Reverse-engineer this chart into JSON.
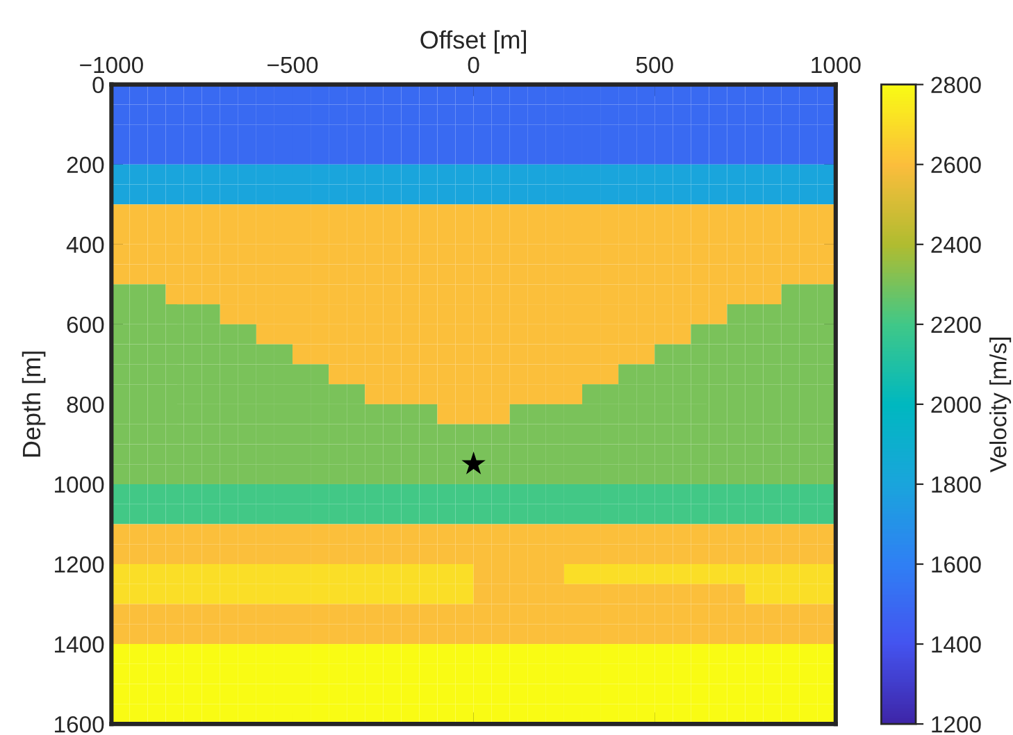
{
  "chart_data": {
    "type": "heatmap",
    "xlabel": "Offset [m]",
    "ylabel": "Depth [m]",
    "clabel": "Velocity [m/s]",
    "xlim": [
      -1000,
      1000
    ],
    "xticks": [
      {
        "value": -1000,
        "label": "−1000"
      },
      {
        "value": -500,
        "label": "−500"
      },
      0,
      500,
      1000
    ],
    "ylim": [
      1600,
      0
    ],
    "yticks": [
      0,
      200,
      400,
      600,
      800,
      1000,
      1200,
      1400,
      1600
    ],
    "clim": [
      1200,
      2800
    ],
    "cticks": [
      1200,
      1400,
      1600,
      1800,
      2000,
      2200,
      2400,
      2600,
      2800
    ],
    "grid": false,
    "marker": "star",
    "cells": [
      [
        1500,
        1500,
        1500,
        1500,
        1500,
        1500,
        1500,
        1500,
        1500,
        1500,
        1500,
        1500,
        1500,
        1500,
        1500,
        1500,
        1500,
        1500,
        1500,
        1500,
        1500,
        1500,
        1500,
        1500,
        1500,
        1500,
        1500,
        1500,
        1500,
        1500,
        1500,
        1500,
        1500,
        1500,
        1500,
        1500,
        1500,
        1500,
        1500,
        1500
      ],
      [
        1500,
        1500,
        1500,
        1500,
        1500,
        1500,
        1500,
        1500,
        1500,
        1500,
        1500,
        1500,
        1500,
        1500,
        1500,
        1500,
        1500,
        1500,
        1500,
        1500,
        1500,
        1500,
        1500,
        1500,
        1500,
        1500,
        1500,
        1500,
        1500,
        1500,
        1500,
        1500,
        1500,
        1500,
        1500,
        1500,
        1500,
        1500,
        1500,
        1500
      ],
      [
        1500,
        1500,
        1500,
        1500,
        1500,
        1500,
        1500,
        1500,
        1500,
        1500,
        1500,
        1500,
        1500,
        1500,
        1500,
        1500,
        1500,
        1500,
        1500,
        1500,
        1500,
        1500,
        1500,
        1500,
        1500,
        1500,
        1500,
        1500,
        1500,
        1500,
        1500,
        1500,
        1500,
        1500,
        1500,
        1500,
        1500,
        1500,
        1500,
        1500
      ],
      [
        1500,
        1500,
        1500,
        1500,
        1500,
        1500,
        1500,
        1500,
        1500,
        1500,
        1500,
        1500,
        1500,
        1500,
        1500,
        1500,
        1500,
        1500,
        1500,
        1500,
        1500,
        1500,
        1500,
        1500,
        1500,
        1500,
        1500,
        1500,
        1500,
        1500,
        1500,
        1500,
        1500,
        1500,
        1500,
        1500,
        1500,
        1500,
        1500,
        1500
      ],
      [
        1800,
        1800,
        1800,
        1800,
        1800,
        1800,
        1800,
        1800,
        1800,
        1800,
        1800,
        1800,
        1800,
        1800,
        1800,
        1800,
        1800,
        1800,
        1800,
        1800,
        1800,
        1800,
        1800,
        1800,
        1800,
        1800,
        1800,
        1800,
        1800,
        1800,
        1800,
        1800,
        1800,
        1800,
        1800,
        1800,
        1800,
        1800,
        1800,
        1800
      ],
      [
        1800,
        1800,
        1800,
        1800,
        1800,
        1800,
        1800,
        1800,
        1800,
        1800,
        1800,
        1800,
        1800,
        1800,
        1800,
        1800,
        1800,
        1800,
        1800,
        1800,
        1800,
        1800,
        1800,
        1800,
        1800,
        1800,
        1800,
        1800,
        1800,
        1800,
        1800,
        1800,
        1800,
        1800,
        1800,
        1800,
        1800,
        1800,
        1800,
        1800
      ],
      [
        2600,
        2600,
        2600,
        2600,
        2600,
        2600,
        2600,
        2600,
        2600,
        2600,
        2600,
        2600,
        2600,
        2600,
        2600,
        2600,
        2600,
        2600,
        2600,
        2600,
        2600,
        2600,
        2600,
        2600,
        2600,
        2600,
        2600,
        2600,
        2600,
        2600,
        2600,
        2600,
        2600,
        2600,
        2600,
        2600,
        2600,
        2600,
        2600,
        2600
      ],
      [
        2600,
        2600,
        2600,
        2600,
        2600,
        2600,
        2600,
        2600,
        2600,
        2600,
        2600,
        2600,
        2600,
        2600,
        2600,
        2600,
        2600,
        2600,
        2600,
        2600,
        2600,
        2600,
        2600,
        2600,
        2600,
        2600,
        2600,
        2600,
        2600,
        2600,
        2600,
        2600,
        2600,
        2600,
        2600,
        2600,
        2600,
        2600,
        2600,
        2600
      ],
      [
        2600,
        2600,
        2600,
        2600,
        2600,
        2600,
        2600,
        2600,
        2600,
        2600,
        2600,
        2600,
        2600,
        2600,
        2600,
        2600,
        2600,
        2600,
        2600,
        2600,
        2600,
        2600,
        2600,
        2600,
        2600,
        2600,
        2600,
        2600,
        2600,
        2600,
        2600,
        2600,
        2600,
        2600,
        2600,
        2600,
        2600,
        2600,
        2600,
        2600
      ],
      [
        2600,
        2600,
        2600,
        2600,
        2600,
        2600,
        2600,
        2600,
        2600,
        2600,
        2600,
        2600,
        2600,
        2600,
        2600,
        2600,
        2600,
        2600,
        2600,
        2600,
        2600,
        2600,
        2600,
        2600,
        2600,
        2600,
        2600,
        2600,
        2600,
        2600,
        2600,
        2600,
        2600,
        2600,
        2600,
        2600,
        2600,
        2600,
        2600,
        2600
      ],
      [
        2300,
        2300,
        2300,
        2600,
        2600,
        2600,
        2600,
        2600,
        2600,
        2600,
        2600,
        2600,
        2600,
        2600,
        2600,
        2600,
        2600,
        2600,
        2600,
        2600,
        2600,
        2600,
        2600,
        2600,
        2600,
        2600,
        2600,
        2600,
        2600,
        2600,
        2600,
        2600,
        2600,
        2600,
        2600,
        2600,
        2600,
        2300,
        2300,
        2300
      ],
      [
        2300,
        2300,
        2300,
        2300,
        2300,
        2300,
        2600,
        2600,
        2600,
        2600,
        2600,
        2600,
        2600,
        2600,
        2600,
        2600,
        2600,
        2600,
        2600,
        2600,
        2600,
        2600,
        2600,
        2600,
        2600,
        2600,
        2600,
        2600,
        2600,
        2600,
        2600,
        2600,
        2600,
        2600,
        2300,
        2300,
        2300,
        2300,
        2300,
        2300
      ],
      [
        2300,
        2300,
        2300,
        2300,
        2300,
        2300,
        2300,
        2300,
        2600,
        2600,
        2600,
        2600,
        2600,
        2600,
        2600,
        2600,
        2600,
        2600,
        2600,
        2600,
        2600,
        2600,
        2600,
        2600,
        2600,
        2600,
        2600,
        2600,
        2600,
        2600,
        2600,
        2600,
        2300,
        2300,
        2300,
        2300,
        2300,
        2300,
        2300,
        2300
      ],
      [
        2300,
        2300,
        2300,
        2300,
        2300,
        2300,
        2300,
        2300,
        2300,
        2300,
        2600,
        2600,
        2600,
        2600,
        2600,
        2600,
        2600,
        2600,
        2600,
        2600,
        2600,
        2600,
        2600,
        2600,
        2600,
        2600,
        2600,
        2600,
        2600,
        2600,
        2300,
        2300,
        2300,
        2300,
        2300,
        2300,
        2300,
        2300,
        2300,
        2300
      ],
      [
        2300,
        2300,
        2300,
        2300,
        2300,
        2300,
        2300,
        2300,
        2300,
        2300,
        2300,
        2300,
        2600,
        2600,
        2600,
        2600,
        2600,
        2600,
        2600,
        2600,
        2600,
        2600,
        2600,
        2600,
        2600,
        2600,
        2600,
        2600,
        2300,
        2300,
        2300,
        2300,
        2300,
        2300,
        2300,
        2300,
        2300,
        2300,
        2300,
        2300
      ],
      [
        2300,
        2300,
        2300,
        2300,
        2300,
        2300,
        2300,
        2300,
        2300,
        2300,
        2300,
        2300,
        2300,
        2300,
        2600,
        2600,
        2600,
        2600,
        2600,
        2600,
        2600,
        2600,
        2600,
        2600,
        2600,
        2600,
        2300,
        2300,
        2300,
        2300,
        2300,
        2300,
        2300,
        2300,
        2300,
        2300,
        2300,
        2300,
        2300,
        2300
      ],
      [
        2300,
        2300,
        2300,
        2300,
        2300,
        2300,
        2300,
        2300,
        2300,
        2300,
        2300,
        2300,
        2300,
        2300,
        2300,
        2300,
        2300,
        2300,
        2600,
        2600,
        2600,
        2600,
        2300,
        2300,
        2300,
        2300,
        2300,
        2300,
        2300,
        2300,
        2300,
        2300,
        2300,
        2300,
        2300,
        2300,
        2300,
        2300,
        2300,
        2300
      ],
      [
        2300,
        2300,
        2300,
        2300,
        2300,
        2300,
        2300,
        2300,
        2300,
        2300,
        2300,
        2300,
        2300,
        2300,
        2300,
        2300,
        2300,
        2300,
        2300,
        2300,
        2300,
        2300,
        2300,
        2300,
        2300,
        2300,
        2300,
        2300,
        2300,
        2300,
        2300,
        2300,
        2300,
        2300,
        2300,
        2300,
        2300,
        2300,
        2300,
        2300
      ],
      [
        2300,
        2300,
        2300,
        2300,
        2300,
        2300,
        2300,
        2300,
        2300,
        2300,
        2300,
        2300,
        2300,
        2300,
        2300,
        2300,
        2300,
        2300,
        2300,
        2300,
        2300,
        2300,
        2300,
        2300,
        2300,
        2300,
        2300,
        2300,
        2300,
        2300,
        2300,
        2300,
        2300,
        2300,
        2300,
        2300,
        2300,
        2300,
        2300,
        2300
      ],
      [
        2300,
        2300,
        2300,
        2300,
        2300,
        2300,
        2300,
        2300,
        2300,
        2300,
        2300,
        2300,
        2300,
        2300,
        2300,
        2300,
        2300,
        2300,
        2300,
        2300,
        2300,
        2300,
        2300,
        2300,
        2300,
        2300,
        2300,
        2300,
        2300,
        2300,
        2300,
        2300,
        2300,
        2300,
        2300,
        2300,
        2300,
        2300,
        2300,
        2300
      ],
      [
        2200,
        2200,
        2200,
        2200,
        2200,
        2200,
        2200,
        2200,
        2200,
        2200,
        2200,
        2200,
        2200,
        2200,
        2200,
        2200,
        2200,
        2200,
        2200,
        2200,
        2200,
        2200,
        2200,
        2200,
        2200,
        2200,
        2200,
        2200,
        2200,
        2200,
        2200,
        2200,
        2200,
        2200,
        2200,
        2200,
        2200,
        2200,
        2200,
        2200
      ],
      [
        2200,
        2200,
        2200,
        2200,
        2200,
        2200,
        2200,
        2200,
        2200,
        2200,
        2200,
        2200,
        2200,
        2200,
        2200,
        2200,
        2200,
        2200,
        2200,
        2200,
        2200,
        2200,
        2200,
        2200,
        2200,
        2200,
        2200,
        2200,
        2200,
        2200,
        2200,
        2200,
        2200,
        2200,
        2200,
        2200,
        2200,
        2200,
        2200,
        2200
      ],
      [
        2600,
        2600,
        2600,
        2600,
        2600,
        2600,
        2600,
        2600,
        2600,
        2600,
        2600,
        2600,
        2600,
        2600,
        2600,
        2600,
        2600,
        2600,
        2600,
        2600,
        2600,
        2600,
        2600,
        2600,
        2600,
        2600,
        2600,
        2600,
        2600,
        2600,
        2600,
        2600,
        2600,
        2600,
        2600,
        2600,
        2600,
        2600,
        2600,
        2600
      ],
      [
        2600,
        2600,
        2600,
        2600,
        2600,
        2600,
        2600,
        2600,
        2600,
        2600,
        2600,
        2600,
        2600,
        2600,
        2600,
        2600,
        2600,
        2600,
        2600,
        2600,
        2600,
        2600,
        2600,
        2600,
        2600,
        2600,
        2600,
        2600,
        2600,
        2600,
        2600,
        2600,
        2600,
        2600,
        2600,
        2600,
        2600,
        2600,
        2600,
        2600
      ],
      [
        2700,
        2700,
        2700,
        2700,
        2700,
        2700,
        2700,
        2700,
        2700,
        2700,
        2700,
        2700,
        2700,
        2700,
        2700,
        2700,
        2700,
        2700,
        2700,
        2700,
        2600,
        2600,
        2600,
        2600,
        2600,
        2700,
        2700,
        2700,
        2700,
        2700,
        2700,
        2700,
        2700,
        2700,
        2700,
        2700,
        2700,
        2700,
        2700,
        2700
      ],
      [
        2700,
        2700,
        2700,
        2700,
        2700,
        2700,
        2700,
        2700,
        2700,
        2700,
        2700,
        2700,
        2700,
        2700,
        2700,
        2700,
        2700,
        2700,
        2700,
        2700,
        2600,
        2600,
        2600,
        2600,
        2600,
        2600,
        2600,
        2600,
        2600,
        2600,
        2600,
        2600,
        2600,
        2600,
        2600,
        2700,
        2700,
        2700,
        2700,
        2700
      ],
      [
        2600,
        2600,
        2600,
        2600,
        2600,
        2600,
        2600,
        2600,
        2600,
        2600,
        2600,
        2600,
        2600,
        2600,
        2600,
        2600,
        2600,
        2600,
        2600,
        2600,
        2600,
        2600,
        2600,
        2600,
        2600,
        2600,
        2600,
        2600,
        2600,
        2600,
        2600,
        2600,
        2600,
        2600,
        2600,
        2600,
        2600,
        2600,
        2600,
        2600
      ],
      [
        2600,
        2600,
        2600,
        2600,
        2600,
        2600,
        2600,
        2600,
        2600,
        2600,
        2600,
        2600,
        2600,
        2600,
        2600,
        2600,
        2600,
        2600,
        2600,
        2600,
        2600,
        2600,
        2600,
        2600,
        2600,
        2600,
        2600,
        2600,
        2600,
        2600,
        2600,
        2600,
        2600,
        2600,
        2600,
        2600,
        2600,
        2600,
        2600,
        2600
      ],
      [
        2800,
        2800,
        2800,
        2800,
        2800,
        2800,
        2800,
        2800,
        2800,
        2800,
        2800,
        2800,
        2800,
        2800,
        2800,
        2800,
        2800,
        2800,
        2800,
        2800,
        2800,
        2800,
        2800,
        2800,
        2800,
        2800,
        2800,
        2800,
        2800,
        2800,
        2800,
        2800,
        2800,
        2800,
        2800,
        2800,
        2800,
        2800,
        2800,
        2800
      ],
      [
        2800,
        2800,
        2800,
        2800,
        2800,
        2800,
        2800,
        2800,
        2800,
        2800,
        2800,
        2800,
        2800,
        2800,
        2800,
        2800,
        2800,
        2800,
        2800,
        2800,
        2800,
        2800,
        2800,
        2800,
        2800,
        2800,
        2800,
        2800,
        2800,
        2800,
        2800,
        2800,
        2800,
        2800,
        2800,
        2800,
        2800,
        2800,
        2800,
        2800
      ],
      [
        2800,
        2800,
        2800,
        2800,
        2800,
        2800,
        2800,
        2800,
        2800,
        2800,
        2800,
        2800,
        2800,
        2800,
        2800,
        2800,
        2800,
        2800,
        2800,
        2800,
        2800,
        2800,
        2800,
        2800,
        2800,
        2800,
        2800,
        2800,
        2800,
        2800,
        2800,
        2800,
        2800,
        2800,
        2800,
        2800,
        2800,
        2800,
        2800,
        2800
      ],
      [
        2800,
        2800,
        2800,
        2800,
        2800,
        2800,
        2800,
        2800,
        2800,
        2800,
        2800,
        2800,
        2800,
        2800,
        2800,
        2800,
        2800,
        2800,
        2800,
        2800,
        2800,
        2800,
        2800,
        2800,
        2800,
        2800,
        2800,
        2800,
        2800,
        2800,
        2800,
        2800,
        2800,
        2800,
        2800,
        2800,
        2800,
        2800,
        2800,
        2800
      ]
    ],
    "series": [
      {
        "type": "scatter",
        "x": [
          0
        ],
        "values": [
          950
        ],
        "color": "#000000"
      }
    ]
  }
}
